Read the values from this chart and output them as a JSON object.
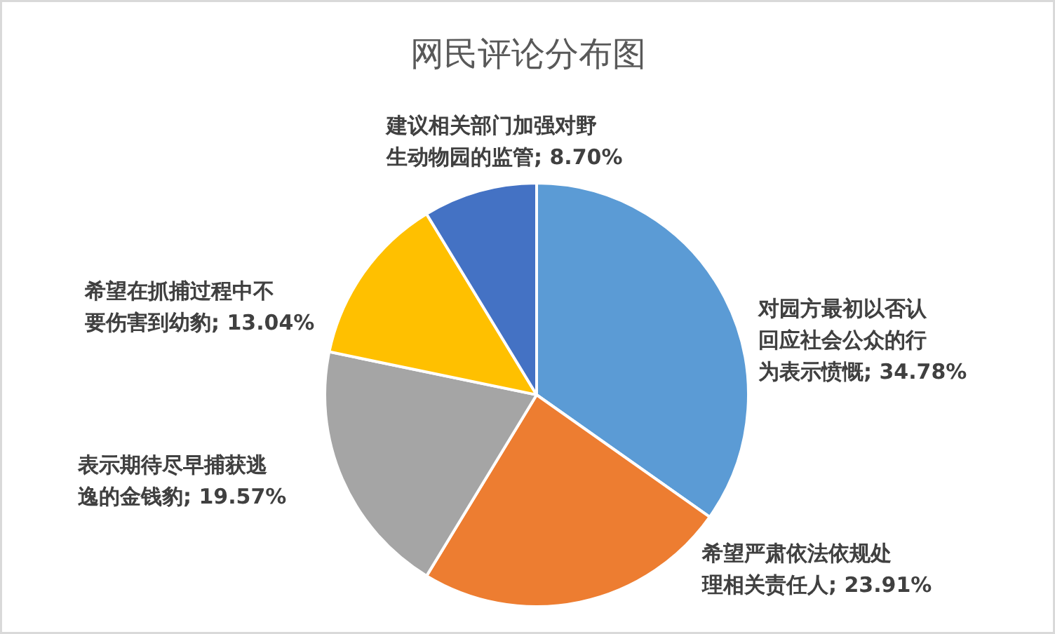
{
  "chart_data": {
    "type": "pie",
    "title": "网民评论分布图",
    "categories": [
      "对园方最初以否认回应社会公众的行为表示愤慨",
      "希望严肃依法依规处理相关责任人",
      "表示期待尽早捕获逃逸的金钱豹",
      "希望在抓捕过程中不要伤害到幼豹",
      "建议相关部门加强对野生动物园的监管"
    ],
    "values": [
      34.78,
      23.91,
      19.57,
      13.04,
      8.7
    ],
    "value_labels": [
      "34.78%",
      "23.91%",
      "19.57%",
      "13.04%",
      "8.70%"
    ],
    "colors": [
      "#5b9bd5",
      "#ed7d31",
      "#a5a5a5",
      "#ffc000",
      "#4472c4"
    ]
  }
}
